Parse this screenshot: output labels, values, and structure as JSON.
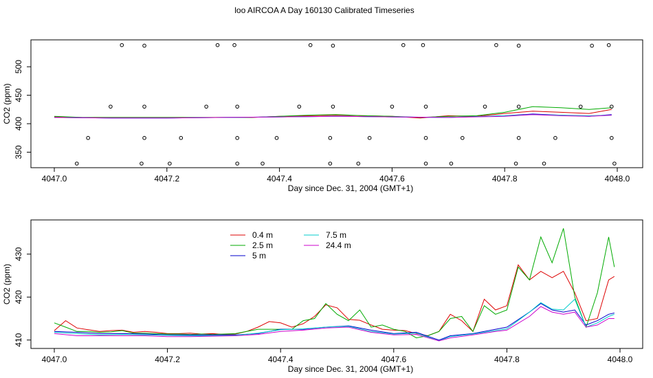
{
  "figure": {
    "title": "loo AIRCOA A  Day 160130  Calibrated Timeseries"
  },
  "chart_data": [
    {
      "type": "line",
      "title": "loo AIRCOA A  Day 160130  Calibrated Timeseries",
      "xlabel": "Day since Dec. 31, 2004 (GMT+1)",
      "ylabel": "CO2 (ppm)",
      "xlim": [
        4047.0,
        4048.0
      ],
      "ylim": [
        330,
        540
      ],
      "xticks": [
        "4047.0",
        "4047.2",
        "4047.4",
        "4047.6",
        "4047.8",
        "4048.0"
      ],
      "yticks": [
        "350",
        "400",
        "450",
        "500"
      ],
      "grid": false,
      "series": [
        {
          "color": "#dd0000",
          "x": [
            4047.0,
            4047.05,
            4047.1,
            4047.15,
            4047.2,
            4047.25,
            4047.3,
            4047.35,
            4047.4,
            4047.45,
            4047.5,
            4047.55,
            4047.6,
            4047.65,
            4047.7,
            4047.75,
            4047.8,
            4047.85,
            4047.9,
            4047.95,
            4047.99
          ],
          "values": [
            412,
            411,
            411,
            411,
            411,
            411,
            411,
            411,
            413,
            414,
            415,
            414,
            413,
            410,
            414,
            413,
            418,
            422,
            420,
            418,
            425
          ]
        },
        {
          "color": "#00aa00",
          "x": [
            4047.0,
            4047.05,
            4047.1,
            4047.15,
            4047.2,
            4047.25,
            4047.3,
            4047.35,
            4047.4,
            4047.45,
            4047.5,
            4047.55,
            4047.6,
            4047.65,
            4047.7,
            4047.75,
            4047.8,
            4047.85,
            4047.9,
            4047.95,
            4047.99
          ],
          "values": [
            413,
            411,
            411,
            411,
            411,
            411,
            411,
            411,
            413,
            415,
            416,
            414,
            413,
            411,
            413,
            414,
            420,
            430,
            428,
            425,
            428
          ]
        },
        {
          "color": "#0000cc",
          "x": [
            4047.0,
            4047.1,
            4047.2,
            4047.3,
            4047.4,
            4047.5,
            4047.6,
            4047.7,
            4047.8,
            4047.85,
            4047.9,
            4047.95,
            4047.99
          ],
          "values": [
            411,
            410,
            410,
            411,
            412,
            413,
            412,
            411,
            414,
            417,
            415,
            413,
            416
          ]
        },
        {
          "color": "#00cccc",
          "x": [
            4047.0,
            4047.1,
            4047.2,
            4047.3,
            4047.4,
            4047.5,
            4047.6,
            4047.7,
            4047.8,
            4047.85,
            4047.9,
            4047.95,
            4047.99
          ],
          "values": [
            411,
            410,
            410,
            411,
            412,
            413,
            412,
            411,
            414,
            416,
            415,
            414,
            415
          ]
        },
        {
          "color": "#cc00cc",
          "x": [
            4047.0,
            4047.1,
            4047.2,
            4047.3,
            4047.4,
            4047.5,
            4047.6,
            4047.7,
            4047.8,
            4047.85,
            4047.9,
            4047.95,
            4047.99
          ],
          "values": [
            411,
            410,
            410,
            411,
            412,
            413,
            412,
            411,
            413,
            416,
            414,
            413,
            415
          ]
        }
      ],
      "points": {
        "x": [
          4047.04,
          4047.06,
          4047.1,
          4047.12,
          4047.155,
          4047.16,
          4047.16,
          4047.16,
          4047.205,
          4047.225,
          4047.27,
          4047.29,
          4047.32,
          4047.325,
          4047.325,
          4047.325,
          4047.37,
          4047.395,
          4047.435,
          4047.455,
          4047.49,
          4047.49,
          4047.495,
          4047.495,
          4047.54,
          4047.56,
          4047.6,
          4047.62,
          4047.655,
          4047.66,
          4047.66,
          4047.66,
          4047.705,
          4047.725,
          4047.765,
          4047.785,
          4047.82,
          4047.825,
          4047.825,
          4047.825,
          4047.87,
          4047.89,
          4047.935,
          4047.955,
          4047.985,
          4047.99,
          4047.99,
          4047.995
        ],
        "y": [
          330,
          375,
          430,
          538,
          330,
          375,
          430,
          537,
          330,
          375,
          430,
          538,
          538,
          430,
          375,
          330,
          330,
          375,
          430,
          538,
          330,
          375,
          430,
          537,
          330,
          375,
          430,
          538,
          538,
          430,
          375,
          330,
          330,
          375,
          430,
          538,
          330,
          430,
          375,
          537,
          330,
          375,
          430,
          537,
          538,
          430,
          375,
          330
        ]
      }
    },
    {
      "type": "line",
      "xlabel": "Day since Dec. 31, 2004 (GMT+1)",
      "ylabel": "CO2 (ppm)",
      "xlim": [
        4047.0,
        4048.0
      ],
      "ylim": [
        409,
        437
      ],
      "xticks": [
        "4047.0",
        "4047.2",
        "4047.4",
        "4047.6",
        "4047.8",
        "4048.0"
      ],
      "yticks": [
        "410",
        "420",
        "430"
      ],
      "grid": false,
      "legend_position": "top-left",
      "legend": [
        "0.4 m",
        "2.5 m",
        "5 m",
        "7.5 m",
        "24.4 m"
      ],
      "series": [
        {
          "name": "0.4 m",
          "color": "#dd0000",
          "x": [
            4047.0,
            4047.02,
            4047.04,
            4047.06,
            4047.08,
            4047.1,
            4047.12,
            4047.14,
            4047.16,
            4047.18,
            4047.2,
            4047.22,
            4047.24,
            4047.26,
            4047.28,
            4047.3,
            4047.32,
            4047.34,
            4047.36,
            4047.38,
            4047.4,
            4047.42,
            4047.44,
            4047.46,
            4047.48,
            4047.5,
            4047.52,
            4047.54,
            4047.56,
            4047.58,
            4047.6,
            4047.62,
            4047.64,
            4047.66,
            4047.68,
            4047.7,
            4047.72,
            4047.74,
            4047.76,
            4047.78,
            4047.8,
            4047.82,
            4047.84,
            4047.86,
            4047.88,
            4047.9,
            4047.92,
            4047.94,
            4047.96,
            4047.98,
            4047.99
          ],
          "values": [
            412.2,
            414.5,
            412.8,
            412.4,
            412.0,
            412.2,
            412.3,
            411.8,
            412.0,
            411.8,
            411.5,
            411.5,
            411.6,
            411.4,
            411.5,
            411.3,
            411.4,
            412.0,
            413.0,
            414.3,
            414.0,
            413.0,
            413.8,
            415.5,
            418.2,
            417.5,
            414.8,
            414.6,
            413.5,
            412.5,
            412.3,
            412.2,
            411.5,
            411.0,
            412.0,
            416.0,
            414.5,
            412.0,
            419.5,
            417.0,
            418.0,
            427.5,
            424.0,
            426.0,
            424.5,
            426.0,
            421.0,
            414.5,
            415.0,
            424.0,
            424.8
          ]
        },
        {
          "name": "2.5 m",
          "color": "#00aa00",
          "x": [
            4047.0,
            4047.02,
            4047.04,
            4047.06,
            4047.08,
            4047.1,
            4047.12,
            4047.14,
            4047.16,
            4047.18,
            4047.2,
            4047.22,
            4047.24,
            4047.26,
            4047.28,
            4047.3,
            4047.32,
            4047.34,
            4047.36,
            4047.38,
            4047.4,
            4047.42,
            4047.44,
            4047.46,
            4047.48,
            4047.5,
            4047.52,
            4047.54,
            4047.56,
            4047.58,
            4047.6,
            4047.62,
            4047.64,
            4047.66,
            4047.68,
            4047.7,
            4047.72,
            4047.74,
            4047.76,
            4047.78,
            4047.8,
            4047.82,
            4047.84,
            4047.86,
            4047.88,
            4047.9,
            4047.92,
            4047.94,
            4047.96,
            4047.98,
            4047.99
          ],
          "values": [
            414.0,
            413.0,
            412.0,
            412.0,
            411.8,
            411.9,
            412.2,
            411.6,
            411.6,
            411.5,
            411.4,
            411.4,
            411.3,
            411.4,
            411.3,
            411.4,
            411.5,
            412.0,
            412.5,
            412.5,
            412.5,
            412.5,
            414.5,
            415.0,
            418.5,
            416.0,
            414.5,
            417.0,
            413.0,
            413.5,
            412.5,
            412.0,
            410.5,
            411.0,
            412.0,
            415.0,
            415.5,
            412.0,
            418.0,
            416.0,
            417.0,
            427.0,
            424.0,
            434.0,
            428.0,
            436.0,
            420.0,
            413.0,
            421.0,
            434.0,
            427.0
          ]
        },
        {
          "name": "5 m",
          "color": "#0000cc",
          "x": [
            4047.0,
            4047.04,
            4047.08,
            4047.12,
            4047.16,
            4047.2,
            4047.24,
            4047.28,
            4047.32,
            4047.36,
            4047.4,
            4047.44,
            4047.48,
            4047.52,
            4047.56,
            4047.6,
            4047.64,
            4047.68,
            4047.7,
            4047.74,
            4047.78,
            4047.8,
            4047.84,
            4047.86,
            4047.88,
            4047.9,
            4047.92,
            4047.94,
            4047.96,
            4047.98,
            4047.99
          ],
          "values": [
            412.0,
            411.8,
            411.5,
            411.5,
            411.4,
            411.2,
            411.2,
            411.2,
            411.2,
            411.5,
            412.5,
            412.5,
            413.0,
            413.3,
            412.3,
            411.5,
            411.8,
            410.0,
            411.0,
            411.5,
            412.5,
            413.0,
            416.5,
            418.5,
            417.0,
            416.5,
            417.0,
            413.5,
            414.5,
            416.0,
            416.3
          ]
        },
        {
          "name": "7.5 m",
          "color": "#00cccc",
          "x": [
            4047.0,
            4047.04,
            4047.08,
            4047.12,
            4047.16,
            4047.2,
            4047.24,
            4047.28,
            4047.32,
            4047.36,
            4047.4,
            4047.44,
            4047.48,
            4047.52,
            4047.56,
            4047.6,
            4047.64,
            4047.68,
            4047.7,
            4047.74,
            4047.78,
            4047.8,
            4047.84,
            4047.86,
            4047.88,
            4047.9,
            4047.92,
            4047.94,
            4047.96,
            4047.98,
            4047.99
          ],
          "values": [
            411.8,
            411.5,
            411.2,
            411.3,
            411.2,
            411.1,
            411.0,
            411.0,
            411.1,
            411.6,
            412.4,
            412.6,
            413.0,
            413.2,
            412.0,
            411.4,
            411.6,
            409.8,
            410.8,
            411.4,
            412.2,
            412.6,
            416.5,
            418.7,
            417.2,
            417.0,
            419.5,
            413.0,
            414.0,
            415.5,
            416.0
          ]
        },
        {
          "name": "24.4 m",
          "color": "#cc00cc",
          "x": [
            4047.0,
            4047.04,
            4047.08,
            4047.12,
            4047.16,
            4047.2,
            4047.24,
            4047.28,
            4047.32,
            4047.36,
            4047.4,
            4047.44,
            4047.48,
            4047.52,
            4047.56,
            4047.6,
            4047.64,
            4047.68,
            4047.7,
            4047.74,
            4047.78,
            4047.8,
            4047.84,
            4047.86,
            4047.88,
            4047.9,
            4047.92,
            4047.94,
            4047.96,
            4047.98,
            4047.99
          ],
          "values": [
            411.5,
            411.0,
            411.0,
            411.0,
            411.0,
            410.8,
            410.8,
            410.9,
            411.0,
            411.3,
            412.0,
            412.3,
            412.8,
            413.0,
            411.8,
            411.2,
            411.3,
            409.8,
            410.5,
            411.2,
            412.0,
            412.3,
            415.5,
            417.8,
            416.5,
            416.0,
            416.5,
            413.0,
            413.5,
            415.0,
            415.0
          ]
        }
      ]
    }
  ]
}
